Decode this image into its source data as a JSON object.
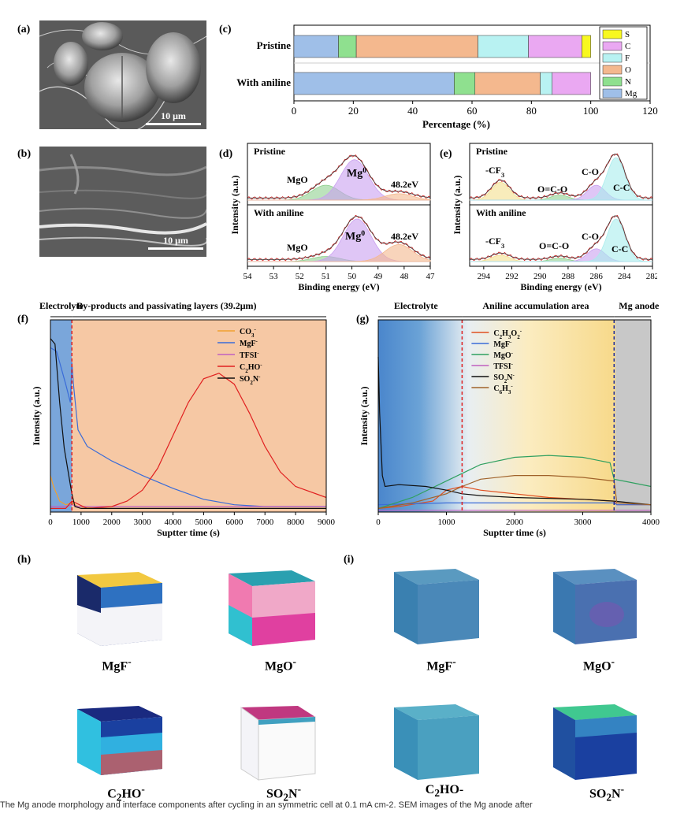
{
  "panels": {
    "a": "(a)",
    "b": "(b)",
    "c": "(c)",
    "d": "(d)",
    "e": "(e)",
    "f": "(f)",
    "g": "(g)",
    "h": "(h)",
    "i": "(i)"
  },
  "sem": {
    "scale_a": "10 μm",
    "scale_b": "10 μm"
  },
  "cubes": {
    "h": [
      "MgF-",
      "MgO-",
      "C2HO-",
      "SO2N-"
    ],
    "i": [
      "MgF-",
      "MgO-",
      "C2HO-",
      "SO2N-"
    ]
  },
  "caption": "The Mg anode morphology and interface components after cycling in an symmetric cell at 0.1 mA cm-2. SEM images of the Mg anode after",
  "colors": {
    "peach": "#f6c8a4",
    "blue": "#6c9ed4",
    "green": "#3aa66a",
    "red": "#e02020"
  },
  "chart_data": [
    {
      "id": "c",
      "type": "bar",
      "orientation": "horizontal",
      "stacked": true,
      "categories": [
        "Pristine",
        "With aniline"
      ],
      "series": [
        {
          "name": "Mg",
          "color": "#9fbfe8",
          "values": [
            15,
            54
          ]
        },
        {
          "name": "N",
          "color": "#8fe08f",
          "values": [
            6,
            7
          ]
        },
        {
          "name": "O",
          "color": "#f4b88e",
          "values": [
            41,
            22
          ]
        },
        {
          "name": "F",
          "color": "#b8f2f2",
          "values": [
            17,
            4
          ]
        },
        {
          "name": "C",
          "color": "#eaa8f2",
          "values": [
            18,
            13
          ]
        },
        {
          "name": "S",
          "color": "#f8f820",
          "values": [
            3,
            0
          ]
        }
      ],
      "legend_order": [
        "S",
        "C",
        "F",
        "O",
        "N",
        "Mg"
      ],
      "xlabel": "Percentage (%)",
      "xlim": [
        0,
        120
      ],
      "xticks": [
        0,
        20,
        40,
        60,
        80,
        100,
        120
      ],
      "legend": "right"
    },
    {
      "id": "d",
      "type": "line",
      "x_reversed": true,
      "xlabel": "Binding energy (eV)",
      "ylabel": "Intensity (a.u.)",
      "xlim": [
        54,
        47
      ],
      "xticks": [
        54,
        53,
        52,
        51,
        50,
        49,
        48,
        47
      ],
      "subpanels": [
        {
          "title": "Pristine",
          "labels": [
            "MgO",
            "Mg0",
            "48.2eV"
          ],
          "peaks": [
            {
              "name": "MgO",
              "center": 51.0,
              "height": 0.35,
              "color": "#8fd08f"
            },
            {
              "name": "Mg0",
              "center": 49.9,
              "height": 0.95,
              "color": "#c9a0f0"
            },
            {
              "name": "48.2eV",
              "center": 48.2,
              "height": 0.15,
              "color": "#f4b88e"
            }
          ]
        },
        {
          "title": "With aniline",
          "labels": [
            "MgO",
            "Mg0",
            "48.2eV"
          ],
          "peaks": [
            {
              "name": "MgO",
              "center": 51.0,
              "height": 0.12,
              "color": "#8fd08f"
            },
            {
              "name": "Mg0",
              "center": 49.8,
              "height": 1.0,
              "color": "#c9a0f0"
            },
            {
              "name": "48.2eV",
              "center": 48.2,
              "height": 0.4,
              "color": "#f4b88e"
            }
          ]
        }
      ]
    },
    {
      "id": "e",
      "type": "line",
      "x_reversed": true,
      "xlabel": "Binding energy (eV)",
      "ylabel": "Intensity (a.u.)",
      "xlim": [
        295,
        282
      ],
      "xticks": [
        294,
        292,
        290,
        288,
        286,
        284,
        282
      ],
      "subpanels": [
        {
          "title": "Pristine",
          "labels": [
            "-CF3",
            "O=C-O",
            "C-O",
            "C-C"
          ],
          "peaks": [
            {
              "name": "-CF3",
              "center": 292.8,
              "height": 0.42,
              "color": "#f4e08e"
            },
            {
              "name": "O=C-O",
              "center": 288.6,
              "height": 0.12,
              "color": "#8fd08f"
            },
            {
              "name": "C-O",
              "center": 286.0,
              "height": 0.35,
              "color": "#c9a0f0"
            },
            {
              "name": "C-C",
              "center": 284.6,
              "height": 1.0,
              "color": "#a8ecec"
            }
          ]
        },
        {
          "title": "With aniline",
          "labels": [
            "-CF3",
            "O=C-O",
            "C-O",
            "C-C"
          ],
          "peaks": [
            {
              "name": "-CF3",
              "center": 292.8,
              "height": 0.15,
              "color": "#f4e08e"
            },
            {
              "name": "O=C-O",
              "center": 288.6,
              "height": 0.08,
              "color": "#8fd08f"
            },
            {
              "name": "C-O",
              "center": 286.0,
              "height": 0.3,
              "color": "#c9a0f0"
            },
            {
              "name": "C-C",
              "center": 284.6,
              "height": 1.0,
              "color": "#a8ecec"
            }
          ]
        }
      ]
    },
    {
      "id": "f",
      "type": "line",
      "xlabel": "Suptter time (s)",
      "ylabel": "Intensity (a.u.)",
      "xlim": [
        0,
        9000
      ],
      "xticks": [
        0,
        1000,
        2000,
        3000,
        4000,
        5000,
        6000,
        7000,
        8000,
        9000
      ],
      "regions": [
        "Electrolyte",
        "By-products and passivating layers (39.2μm)"
      ],
      "boundary": 700,
      "series": [
        {
          "name": "CO3-",
          "color": "#f0a030",
          "x": [
            0,
            100,
            300,
            500,
            700,
            900,
            1500,
            3000,
            9000
          ],
          "y": [
            0.2,
            0.14,
            0.06,
            0.04,
            0.05,
            0.03,
            0.02,
            0.02,
            0.02
          ]
        },
        {
          "name": "MgF-",
          "color": "#3a6cd8",
          "x": [
            0,
            200,
            500,
            650,
            700,
            750,
            900,
            1200,
            2000,
            3000,
            4000,
            5000,
            6000,
            7000,
            9000
          ],
          "y": [
            0.9,
            0.88,
            0.7,
            0.6,
            0.82,
            0.7,
            0.45,
            0.36,
            0.28,
            0.2,
            0.13,
            0.07,
            0.04,
            0.03,
            0.03
          ]
        },
        {
          "name": "TFSI-",
          "color": "#c060c0",
          "x": [
            0,
            500,
            700,
            900,
            9000
          ],
          "y": [
            0.03,
            0.03,
            0.04,
            0.03,
            0.03
          ]
        },
        {
          "name": "C2HO-",
          "color": "#e02020",
          "x": [
            0,
            500,
            700,
            1200,
            2000,
            2500,
            3000,
            3500,
            4000,
            4500,
            5000,
            5500,
            6000,
            6500,
            7000,
            7500,
            8000,
            9000
          ],
          "y": [
            0.02,
            0.02,
            0.06,
            0.02,
            0.03,
            0.06,
            0.12,
            0.24,
            0.42,
            0.6,
            0.73,
            0.76,
            0.7,
            0.54,
            0.36,
            0.22,
            0.14,
            0.08
          ]
        },
        {
          "name": "SO2N-",
          "color": "#101010",
          "x": [
            0,
            150,
            300,
            450,
            600,
            700,
            800,
            1000,
            9000
          ],
          "y": [
            0.95,
            0.92,
            0.6,
            0.35,
            0.2,
            0.1,
            0.03,
            0.02,
            0.02
          ]
        }
      ]
    },
    {
      "id": "g",
      "type": "line",
      "xlabel": "Suptter time (s)",
      "ylabel": "Intensity (a.u.)",
      "xlim": [
        0,
        4000
      ],
      "xticks": [
        0,
        1000,
        2000,
        3000,
        4000
      ],
      "regions": [
        "Electrolyte",
        "Aniline accumulation area",
        "Mg anode"
      ],
      "boundaries": [
        1230,
        3460
      ],
      "series": [
        {
          "name": "C2H3O2-",
          "color": "#e05020",
          "x": [
            0,
            300,
            800,
            1000,
            1230,
            1500,
            2000,
            2500,
            3000,
            3460,
            3500,
            4000
          ],
          "y": [
            0.02,
            0.03,
            0.06,
            0.12,
            0.14,
            0.12,
            0.1,
            0.08,
            0.07,
            0.06,
            0.04,
            0.04
          ]
        },
        {
          "name": "MgF-",
          "color": "#3a6cd8",
          "x": [
            0,
            1000,
            2000,
            3000,
            3460,
            3500,
            4000
          ],
          "y": [
            0.04,
            0.05,
            0.05,
            0.05,
            0.05,
            0.04,
            0.04
          ]
        },
        {
          "name": "MgO-",
          "color": "#30a060",
          "x": [
            0,
            500,
            1000,
            1500,
            2000,
            2500,
            3000,
            3400,
            3460,
            3600,
            4000
          ],
          "y": [
            0.02,
            0.08,
            0.17,
            0.26,
            0.3,
            0.31,
            0.3,
            0.27,
            0.18,
            0.17,
            0.14
          ]
        },
        {
          "name": "TFSI-",
          "color": "#c060c0",
          "x": [
            0,
            4000
          ],
          "y": [
            0.01,
            0.01
          ]
        },
        {
          "name": "SO2N-",
          "color": "#101010",
          "x": [
            0,
            20,
            60,
            100,
            300,
            700,
            1000,
            1230,
            1500,
            2000,
            3000,
            3460,
            4000
          ],
          "y": [
            0.85,
            0.55,
            0.2,
            0.14,
            0.15,
            0.14,
            0.12,
            0.1,
            0.09,
            0.08,
            0.07,
            0.06,
            0.04
          ]
        },
        {
          "name": "C6H3-",
          "color": "#a0622a",
          "x": [
            0,
            500,
            1000,
            1230,
            1500,
            2000,
            2500,
            3000,
            3460,
            3500,
            4000
          ],
          "y": [
            0.02,
            0.05,
            0.1,
            0.14,
            0.18,
            0.2,
            0.2,
            0.19,
            0.17,
            0.05,
            0.04
          ]
        }
      ]
    }
  ]
}
